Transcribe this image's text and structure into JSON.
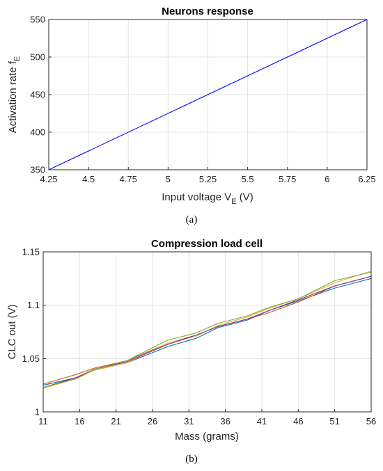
{
  "chart_data": [
    {
      "type": "line",
      "title": "Neurons response",
      "xlabel": {
        "main": "Input voltage V",
        "sub": "E",
        "tail": " (V)"
      },
      "ylabel": {
        "main": "Activation rate f",
        "sub": "E"
      },
      "xlim": [
        4.25,
        6.25
      ],
      "ylim": [
        350,
        550
      ],
      "xticks": [
        4.25,
        4.5,
        4.75,
        5,
        5.25,
        5.5,
        5.75,
        6,
        6.25
      ],
      "xtick_labels": [
        "4.25",
        "4.5",
        "4.75",
        "5",
        "5.25",
        "5.5",
        "5.75",
        "6",
        "6.25"
      ],
      "yticks": [
        350,
        400,
        450,
        500,
        550
      ],
      "ytick_labels": [
        "350",
        "400",
        "450",
        "500",
        "550"
      ],
      "grid": true,
      "caption": "(a)",
      "series": [
        {
          "color": "#0000ff",
          "x": [
            4.25,
            6.25
          ],
          "y": [
            350,
            550
          ]
        }
      ]
    },
    {
      "type": "line",
      "title": "Compression load cell",
      "xlabel": "Mass (grams)",
      "ylabel": "CLC out (V)",
      "xlim": [
        11,
        56
      ],
      "ylim": [
        1,
        1.15
      ],
      "xticks": [
        11,
        16,
        21,
        26,
        31,
        36,
        41,
        46,
        51,
        56
      ],
      "xtick_labels": [
        "11",
        "16",
        "21",
        "26",
        "31",
        "36",
        "41",
        "46",
        "51",
        "56"
      ],
      "yticks": [
        1,
        1.05,
        1.1,
        1.15
      ],
      "ytick_labels": [
        "1",
        "1.05",
        "1.1",
        "1.15"
      ],
      "grid": true,
      "caption": "(b)",
      "series": [
        {
          "color": "#0072bd",
          "x": [
            11,
            15.5,
            18,
            22.5,
            28,
            32,
            35,
            39,
            42,
            46,
            51,
            56
          ],
          "y": [
            1.025,
            1.032,
            1.039,
            1.046,
            1.061,
            1.069,
            1.079,
            1.086,
            1.095,
            1.104,
            1.116,
            1.125
          ]
        },
        {
          "color": "#d95319",
          "x": [
            11,
            15.5,
            18,
            22.5,
            28,
            32,
            35,
            39,
            42,
            46,
            51,
            56
          ],
          "y": [
            1.026,
            1.035,
            1.041,
            1.048,
            1.064,
            1.072,
            1.08,
            1.087,
            1.093,
            1.103,
            1.118,
            1.127
          ]
        },
        {
          "color": "#edb120",
          "x": [
            11,
            15.5,
            18,
            22.5,
            28,
            32,
            35,
            39,
            42,
            46,
            51,
            56
          ],
          "y": [
            1.022,
            1.031,
            1.039,
            1.046,
            1.064,
            1.071,
            1.081,
            1.089,
            1.097,
            1.106,
            1.121,
            1.132
          ]
        },
        {
          "color": "#7e2f8e",
          "x": [
            11,
            15.5,
            18,
            22.5,
            28,
            32,
            35,
            39,
            42,
            46,
            51,
            56
          ],
          "y": [
            1.023,
            1.032,
            1.04,
            1.047,
            1.063,
            1.072,
            1.08,
            1.087,
            1.095,
            1.105,
            1.118,
            1.127
          ]
        },
        {
          "color": "#77ac30",
          "x": [
            11,
            15.5,
            18,
            22.5,
            28,
            32,
            35,
            39,
            42,
            46,
            51,
            56
          ],
          "y": [
            1.023,
            1.031,
            1.04,
            1.048,
            1.067,
            1.074,
            1.083,
            1.09,
            1.098,
            1.106,
            1.123,
            1.131
          ]
        }
      ]
    }
  ]
}
